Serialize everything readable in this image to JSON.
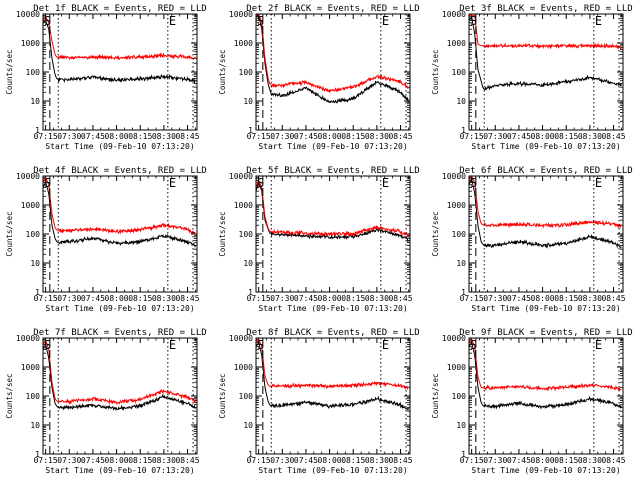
{
  "figure": {
    "tick_labels_x": [
      "07:15",
      "07:30",
      "07:45",
      "08:00",
      "08:15",
      "08:30",
      "08:45"
    ],
    "tick_labels_y": [
      "1",
      "10",
      "100",
      "1000",
      "10000"
    ],
    "xlabel": "Start Time (09-Feb-10 07:13:20)",
    "ylabel": "Counts/sec",
    "marker_start": "S",
    "marker_end": "E"
  },
  "chart_data": [
    {
      "type": "line",
      "title": "Det 1f BLACK = Events, RED = LLD",
      "y_scale": "log",
      "ylim": [
        1,
        10000
      ],
      "xlim": [
        "07:13:20",
        "08:51:00"
      ],
      "grid": false,
      "series": [
        {
          "name": "Events",
          "color": "#000000",
          "x": [
            "07:13:20",
            "07:15:00",
            "07:17:00",
            "07:19:00",
            "07:21:00",
            "07:22:00",
            "07:23:00",
            "07:30:00",
            "07:45:00",
            "08:00:00",
            "08:15:00",
            "08:30:00",
            "08:45:00",
            "08:50:00"
          ],
          "y": [
            5000,
            6000,
            3000,
            300,
            80,
            60,
            55,
            55,
            65,
            52,
            58,
            70,
            55,
            48
          ]
        },
        {
          "name": "LLD",
          "color": "#ff0000",
          "x": [
            "07:13:20",
            "07:15:00",
            "07:17:00",
            "07:19:00",
            "07:21:00",
            "07:22:00",
            "07:23:00",
            "07:30:00",
            "07:45:00",
            "08:00:00",
            "08:15:00",
            "08:30:00",
            "08:45:00",
            "08:50:00"
          ],
          "y": [
            6000,
            8000,
            5000,
            1200,
            400,
            330,
            320,
            320,
            330,
            310,
            330,
            370,
            330,
            290
          ]
        }
      ]
    },
    {
      "type": "line",
      "title": "Det 2f BLACK = Events, RED = LLD",
      "y_scale": "log",
      "ylim": [
        1,
        10000
      ],
      "xlim": [
        "07:13:20",
        "08:51:00"
      ],
      "grid": false,
      "series": [
        {
          "name": "Events",
          "color": "#000000",
          "x": [
            "07:13:20",
            "07:15:00",
            "07:17:00",
            "07:19:00",
            "07:21:00",
            "07:22:00",
            "07:23:00",
            "07:30:00",
            "07:45:00",
            "08:00:00",
            "08:15:00",
            "08:30:00",
            "08:45:00",
            "08:50:00"
          ],
          "y": [
            8000,
            9000,
            3000,
            200,
            40,
            25,
            18,
            15,
            28,
            9,
            12,
            45,
            20,
            10
          ]
        },
        {
          "name": "LLD",
          "color": "#ff0000",
          "x": [
            "07:13:20",
            "07:15:00",
            "07:17:00",
            "07:19:00",
            "07:21:00",
            "07:22:00",
            "07:23:00",
            "07:30:00",
            "07:45:00",
            "08:00:00",
            "08:15:00",
            "08:30:00",
            "08:45:00",
            "08:50:00"
          ],
          "y": [
            9000,
            10000,
            5000,
            300,
            60,
            40,
            35,
            35,
            45,
            22,
            30,
            70,
            45,
            30
          ]
        }
      ]
    },
    {
      "type": "line",
      "title": "Det 3f BLACK = Events, RED = LLD",
      "y_scale": "log",
      "ylim": [
        1,
        10000
      ],
      "xlim": [
        "07:13:20",
        "08:51:00"
      ],
      "grid": false,
      "series": [
        {
          "name": "Events",
          "color": "#000000",
          "x": [
            "07:13:20",
            "07:15:00",
            "07:17:00",
            "07:19:00",
            "07:21:00",
            "07:22:00",
            "07:23:00",
            "07:30:00",
            "07:45:00",
            "08:00:00",
            "08:15:00",
            "08:30:00",
            "08:45:00",
            "08:50:00"
          ],
          "y": [
            6000,
            8000,
            2000,
            120,
            50,
            30,
            25,
            35,
            40,
            35,
            45,
            65,
            40,
            35
          ]
        },
        {
          "name": "LLD",
          "color": "#ff0000",
          "x": [
            "07:13:20",
            "07:15:00",
            "07:17:00",
            "07:19:00",
            "07:21:00",
            "07:22:00",
            "07:23:00",
            "07:30:00",
            "07:45:00",
            "08:00:00",
            "08:15:00",
            "08:30:00",
            "08:45:00",
            "08:50:00"
          ],
          "y": [
            9000,
            9000,
            9000,
            900,
            820,
            800,
            800,
            810,
            800,
            790,
            800,
            820,
            780,
            700
          ]
        }
      ]
    },
    {
      "type": "line",
      "title": "Det 4f BLACK = Events, RED = LLD",
      "y_scale": "log",
      "ylim": [
        1,
        10000
      ],
      "xlim": [
        "07:13:20",
        "08:51:00"
      ],
      "grid": false,
      "series": [
        {
          "name": "Events",
          "color": "#000000",
          "x": [
            "07:13:20",
            "07:15:00",
            "07:17:00",
            "07:19:00",
            "07:21:00",
            "07:22:00",
            "07:23:00",
            "07:30:00",
            "07:45:00",
            "08:00:00",
            "08:15:00",
            "08:30:00",
            "08:45:00",
            "08:50:00"
          ],
          "y": [
            4000,
            6000,
            2500,
            200,
            70,
            55,
            50,
            55,
            70,
            48,
            55,
            85,
            55,
            38
          ]
        },
        {
          "name": "LLD",
          "color": "#ff0000",
          "x": [
            "07:13:20",
            "07:15:00",
            "07:17:00",
            "07:19:00",
            "07:21:00",
            "07:22:00",
            "07:23:00",
            "07:30:00",
            "07:45:00",
            "08:00:00",
            "08:15:00",
            "08:30:00",
            "08:45:00",
            "08:50:00"
          ],
          "y": [
            6000,
            9000,
            5000,
            500,
            160,
            140,
            130,
            130,
            150,
            120,
            140,
            200,
            150,
            100
          ]
        }
      ]
    },
    {
      "type": "line",
      "title": "Det 5f BLACK = Events, RED = LLD",
      "y_scale": "log",
      "ylim": [
        1,
        10000
      ],
      "xlim": [
        "07:13:20",
        "08:51:00"
      ],
      "grid": false,
      "series": [
        {
          "name": "Events",
          "color": "#000000",
          "x": [
            "07:13:20",
            "07:15:00",
            "07:17:00",
            "07:19:00",
            "07:21:00",
            "07:22:00",
            "07:23:00",
            "07:30:00",
            "07:45:00",
            "08:00:00",
            "08:15:00",
            "08:30:00",
            "08:45:00",
            "08:50:00"
          ],
          "y": [
            3000,
            6000,
            3000,
            300,
            150,
            110,
            100,
            95,
            85,
            80,
            80,
            140,
            90,
            60
          ]
        },
        {
          "name": "LLD",
          "color": "#ff0000",
          "x": [
            "07:13:20",
            "07:15:00",
            "07:17:00",
            "07:19:00",
            "07:21:00",
            "07:22:00",
            "07:23:00",
            "07:30:00",
            "07:45:00",
            "08:00:00",
            "08:15:00",
            "08:30:00",
            "08:45:00",
            "08:50:00"
          ],
          "y": [
            4000,
            7000,
            4000,
            400,
            160,
            125,
            120,
            115,
            105,
            100,
            100,
            170,
            120,
            90
          ]
        }
      ]
    },
    {
      "type": "line",
      "title": "Det 6f BLACK = Events, RED = LLD",
      "y_scale": "log",
      "ylim": [
        1,
        10000
      ],
      "xlim": [
        "07:13:20",
        "08:51:00"
      ],
      "grid": false,
      "series": [
        {
          "name": "Events",
          "color": "#000000",
          "x": [
            "07:13:20",
            "07:15:00",
            "07:17:00",
            "07:19:00",
            "07:21:00",
            "07:22:00",
            "07:23:00",
            "07:30:00",
            "07:45:00",
            "08:00:00",
            "08:15:00",
            "08:30:00",
            "08:45:00",
            "08:50:00"
          ],
          "y": [
            5000,
            8000,
            2500,
            200,
            55,
            45,
            40,
            40,
            55,
            40,
            48,
            80,
            50,
            35
          ]
        },
        {
          "name": "LLD",
          "color": "#ff0000",
          "x": [
            "07:13:20",
            "07:15:00",
            "07:17:00",
            "07:19:00",
            "07:21:00",
            "07:22:00",
            "07:23:00",
            "07:30:00",
            "07:45:00",
            "08:00:00",
            "08:15:00",
            "08:30:00",
            "08:45:00",
            "08:50:00"
          ],
          "y": [
            8000,
            10000,
            6000,
            600,
            230,
            210,
            200,
            200,
            220,
            200,
            210,
            260,
            220,
            180
          ]
        }
      ]
    },
    {
      "type": "line",
      "title": "Det 7f BLACK = Events, RED = LLD",
      "y_scale": "log",
      "ylim": [
        1,
        10000
      ],
      "xlim": [
        "07:13:20",
        "08:51:00"
      ],
      "grid": false,
      "series": [
        {
          "name": "Events",
          "color": "#000000",
          "x": [
            "07:13:20",
            "07:15:00",
            "07:17:00",
            "07:19:00",
            "07:21:00",
            "07:22:00",
            "07:23:00",
            "07:30:00",
            "07:45:00",
            "08:00:00",
            "08:15:00",
            "08:30:00",
            "08:45:00",
            "08:50:00"
          ],
          "y": [
            4000,
            6000,
            2000,
            200,
            55,
            45,
            40,
            40,
            48,
            36,
            45,
            95,
            55,
            38
          ]
        },
        {
          "name": "LLD",
          "color": "#ff0000",
          "x": [
            "07:13:20",
            "07:15:00",
            "07:17:00",
            "07:19:00",
            "07:21:00",
            "07:22:00",
            "07:23:00",
            "07:30:00",
            "07:45:00",
            "08:00:00",
            "08:15:00",
            "08:30:00",
            "08:45:00",
            "08:50:00"
          ],
          "y": [
            6000,
            8000,
            4000,
            300,
            80,
            68,
            65,
            65,
            80,
            60,
            75,
            150,
            90,
            65
          ]
        }
      ]
    },
    {
      "type": "line",
      "title": "Det 8f BLACK = Events, RED = LLD",
      "y_scale": "log",
      "ylim": [
        1,
        10000
      ],
      "xlim": [
        "07:13:20",
        "08:51:00"
      ],
      "grid": false,
      "series": [
        {
          "name": "Events",
          "color": "#000000",
          "x": [
            "07:13:20",
            "07:15:00",
            "07:17:00",
            "07:19:00",
            "07:21:00",
            "07:22:00",
            "07:23:00",
            "07:30:00",
            "07:45:00",
            "08:00:00",
            "08:15:00",
            "08:30:00",
            "08:45:00",
            "08:50:00"
          ],
          "y": [
            5000,
            7000,
            2500,
            200,
            65,
            50,
            45,
            48,
            60,
            45,
            50,
            80,
            50,
            35
          ]
        },
        {
          "name": "LLD",
          "color": "#ff0000",
          "x": [
            "07:13:20",
            "07:15:00",
            "07:17:00",
            "07:19:00",
            "07:21:00",
            "07:22:00",
            "07:23:00",
            "07:30:00",
            "07:45:00",
            "08:00:00",
            "08:15:00",
            "08:30:00",
            "08:45:00",
            "08:50:00"
          ],
          "y": [
            7000,
            9000,
            5000,
            500,
            240,
            220,
            220,
            220,
            240,
            210,
            230,
            280,
            230,
            190
          ]
        }
      ]
    },
    {
      "type": "line",
      "title": "Det 9f BLACK = Events, RED = LLD",
      "y_scale": "log",
      "ylim": [
        1,
        10000
      ],
      "xlim": [
        "07:13:20",
        "08:51:00"
      ],
      "grid": false,
      "series": [
        {
          "name": "Events",
          "color": "#000000",
          "x": [
            "07:13:20",
            "07:15:00",
            "07:17:00",
            "07:19:00",
            "07:21:00",
            "07:22:00",
            "07:23:00",
            "07:30:00",
            "07:45:00",
            "08:00:00",
            "08:15:00",
            "08:30:00",
            "08:45:00",
            "08:50:00"
          ],
          "y": [
            5000,
            7000,
            2500,
            200,
            60,
            48,
            45,
            45,
            55,
            42,
            50,
            80,
            55,
            40
          ]
        },
        {
          "name": "LLD",
          "color": "#ff0000",
          "x": [
            "07:13:20",
            "07:15:00",
            "07:17:00",
            "07:19:00",
            "07:21:00",
            "07:22:00",
            "07:23:00",
            "07:30:00",
            "07:45:00",
            "08:00:00",
            "08:15:00",
            "08:30:00",
            "08:45:00",
            "08:50:00"
          ],
          "y": [
            7000,
            9000,
            5000,
            450,
            200,
            190,
            190,
            190,
            210,
            180,
            200,
            240,
            200,
            170
          ]
        }
      ]
    }
  ]
}
